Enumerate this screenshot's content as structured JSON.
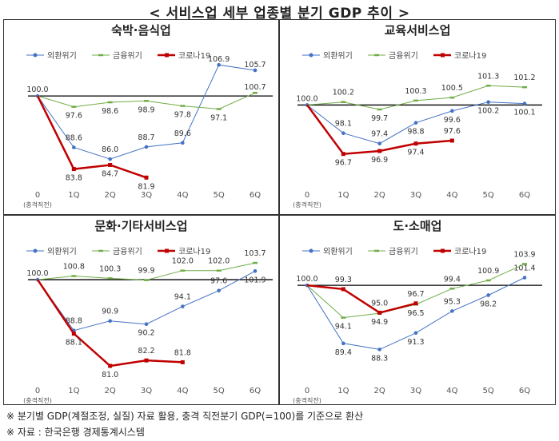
{
  "title": "< 서비스업 세부 업종별 분기 GDP 추이 >",
  "notes": [
    "※ 분기별 GDP(계절조정, 실질) 자료 활용, 충격 직전분기 GDP(=100)를 기준으로 환산",
    "※ 자료 : 한국은행 경제통계시스템"
  ],
  "colors": {
    "imf": "#4472c4",
    "fin": "#70ad47",
    "covid": "#c00000",
    "baseline": "#000000"
  },
  "chart_data": [
    {
      "type": "line",
      "title": "숙박·음식업",
      "categories": [
        "0",
        "1Q",
        "2Q",
        "3Q",
        "4Q",
        "5Q",
        "6Q"
      ],
      "x_sublabel": "(충격직전)",
      "series": [
        {
          "name": "외환위기",
          "values": [
            100.0,
            88.6,
            86.0,
            88.7,
            89.6,
            106.9,
            105.7
          ]
        },
        {
          "name": "금융위기",
          "values": [
            100.0,
            97.6,
            98.6,
            98.9,
            97.8,
            97.1,
            100.7
          ]
        },
        {
          "name": "코로나19",
          "values": [
            100.0,
            83.8,
            84.7,
            81.9,
            null,
            null,
            null
          ]
        }
      ],
      "ylim": [
        80,
        108
      ]
    },
    {
      "type": "line",
      "title": "교육서비스업",
      "categories": [
        "0",
        "1Q",
        "2Q",
        "3Q",
        "4Q",
        "5Q",
        "6Q"
      ],
      "x_sublabel": "(충격직전)",
      "series": [
        {
          "name": "외환위기",
          "values": [
            100.0,
            98.1,
            97.4,
            98.8,
            99.6,
            100.2,
            100.1
          ]
        },
        {
          "name": "금융위기",
          "values": [
            100.0,
            100.2,
            99.7,
            100.3,
            100.5,
            101.3,
            101.2
          ]
        },
        {
          "name": "코로나19",
          "values": [
            100.0,
            96.7,
            96.9,
            97.4,
            97.6,
            null,
            null
          ]
        }
      ],
      "ylim": [
        95.5,
        102.5
      ]
    },
    {
      "type": "line",
      "title": "문화·기타서비스업",
      "categories": [
        "0",
        "1Q",
        "2Q",
        "3Q",
        "4Q",
        "5Q",
        "6Q"
      ],
      "x_sublabel": "(충격직전)",
      "series": [
        {
          "name": "외환위기",
          "values": [
            100.0,
            88.8,
            90.9,
            90.2,
            94.1,
            97.6,
            101.9
          ]
        },
        {
          "name": "금융위기",
          "values": [
            100.0,
            100.8,
            100.3,
            99.9,
            102.0,
            102.0,
            103.7
          ]
        },
        {
          "name": "코로나19",
          "values": [
            100.0,
            88.1,
            81.0,
            82.2,
            81.8,
            null,
            null
          ]
        }
      ],
      "ylim": [
        78,
        106
      ]
    },
    {
      "type": "line",
      "title": "도·소매업",
      "categories": [
        "0",
        "1Q",
        "2Q",
        "3Q",
        "4Q",
        "5Q",
        "6Q"
      ],
      "x_sublabel": "(충격직전)",
      "series": [
        {
          "name": "외환위기",
          "values": [
            100.0,
            89.4,
            88.3,
            91.3,
            95.3,
            98.2,
            101.4
          ]
        },
        {
          "name": "금융위기",
          "values": [
            100.0,
            94.1,
            94.9,
            96.5,
            99.4,
            100.9,
            103.9
          ]
        },
        {
          "name": "코로나19",
          "values": [
            100.0,
            99.3,
            95.0,
            96.7,
            null,
            null,
            null
          ]
        }
      ],
      "ylim": [
        85,
        106
      ]
    }
  ]
}
